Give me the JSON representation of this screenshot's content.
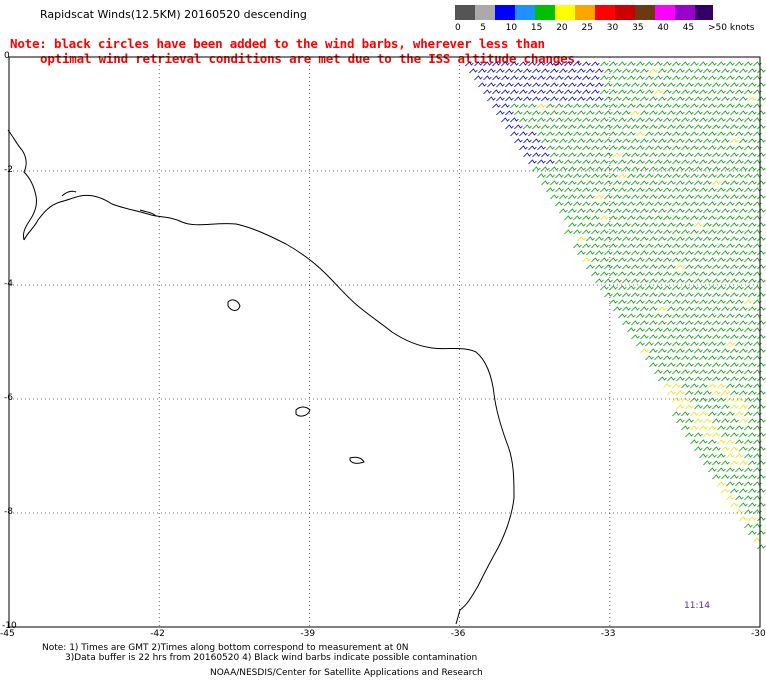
{
  "title": "Rapidscat Winds(12.5KM) 20160520 descending",
  "note_line1": "Note: black circles have been added to the wind barbs, wherever less than",
  "note_line2": "optimal wind retrieval conditions are met due to the ISS altitude changes.",
  "legend": {
    "units": ">50 knots",
    "swatches": [
      "#555555",
      "#aaaaaa",
      "#0000ff",
      "#1e90ff",
      "#00c000",
      "#ffff00",
      "#ffa500",
      "#ff0000",
      "#cc0000",
      "#6b3a10",
      "#ff00ff",
      "#9900cc",
      "#330066"
    ],
    "labels": [
      "0",
      "5",
      "10",
      "15",
      "20",
      "25",
      "30",
      "35",
      "40",
      "45"
    ]
  },
  "map": {
    "lon_labels": [
      "-45",
      "-42",
      "-39",
      "-36",
      "-33",
      "-30"
    ],
    "lat_labels": [
      "0",
      "-2",
      "-4",
      "-6",
      "-8",
      "-10"
    ]
  },
  "wind_colors": {
    "blue": "#0000cc",
    "green": "#00a000",
    "yellow": "#e8e800",
    "black": "#000000"
  },
  "time_label": "11:14",
  "footnote_line1": "Note: 1) Times are GMT 2)Times along bottom correspond to measurement at 0N",
  "footnote_line2": "3)Data buffer is 22 hrs from 20160520 4) Black wind barbs indicate possible contamination",
  "credit": "NOAA/NESDIS/Center for Satellite Applications and Research"
}
